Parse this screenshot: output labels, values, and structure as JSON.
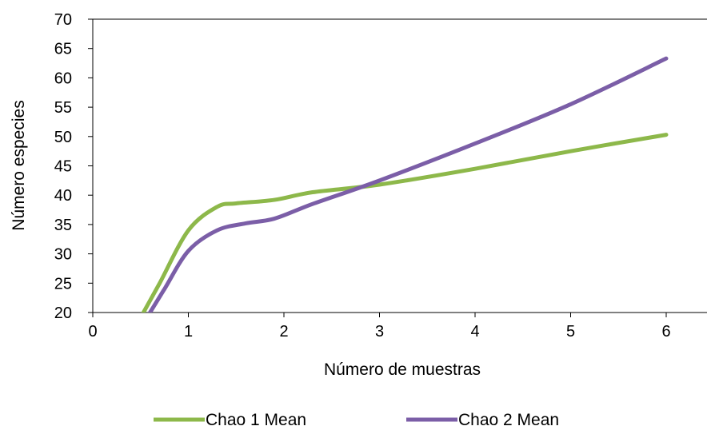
{
  "chart_data": {
    "type": "line",
    "xlabel": "Número de muestras",
    "ylabel": "Número especies",
    "xlim": [
      0,
      6.5
    ],
    "ylim": [
      20,
      70
    ],
    "x_ticks": [
      0,
      1,
      2,
      3,
      4,
      5,
      6
    ],
    "y_ticks": [
      20,
      25,
      30,
      35,
      40,
      45,
      50,
      55,
      60,
      65,
      70
    ],
    "grid": false,
    "legend_position": "bottom",
    "series": [
      {
        "name": "Chao 1 Mean",
        "color": "#8DB84A",
        "points": [
          [
            0.53,
            20
          ],
          [
            0.7,
            25
          ],
          [
            1,
            34
          ],
          [
            1.3,
            38
          ],
          [
            1.5,
            38.6
          ],
          [
            1.9,
            39.2
          ],
          [
            2.3,
            40.5
          ],
          [
            3,
            41.8
          ],
          [
            4,
            44.5
          ],
          [
            5,
            47.5
          ],
          [
            6,
            50.3
          ]
        ]
      },
      {
        "name": "Chao 2 Mean",
        "color": "#7B5EA7",
        "points": [
          [
            0.58,
            19.5
          ],
          [
            0.75,
            24
          ],
          [
            1,
            30.5
          ],
          [
            1.3,
            34
          ],
          [
            1.6,
            35.2
          ],
          [
            1.9,
            36
          ],
          [
            2.3,
            38.5
          ],
          [
            3,
            42.5
          ],
          [
            4,
            48.8
          ],
          [
            5,
            55.5
          ],
          [
            6,
            63.3
          ]
        ]
      }
    ]
  }
}
